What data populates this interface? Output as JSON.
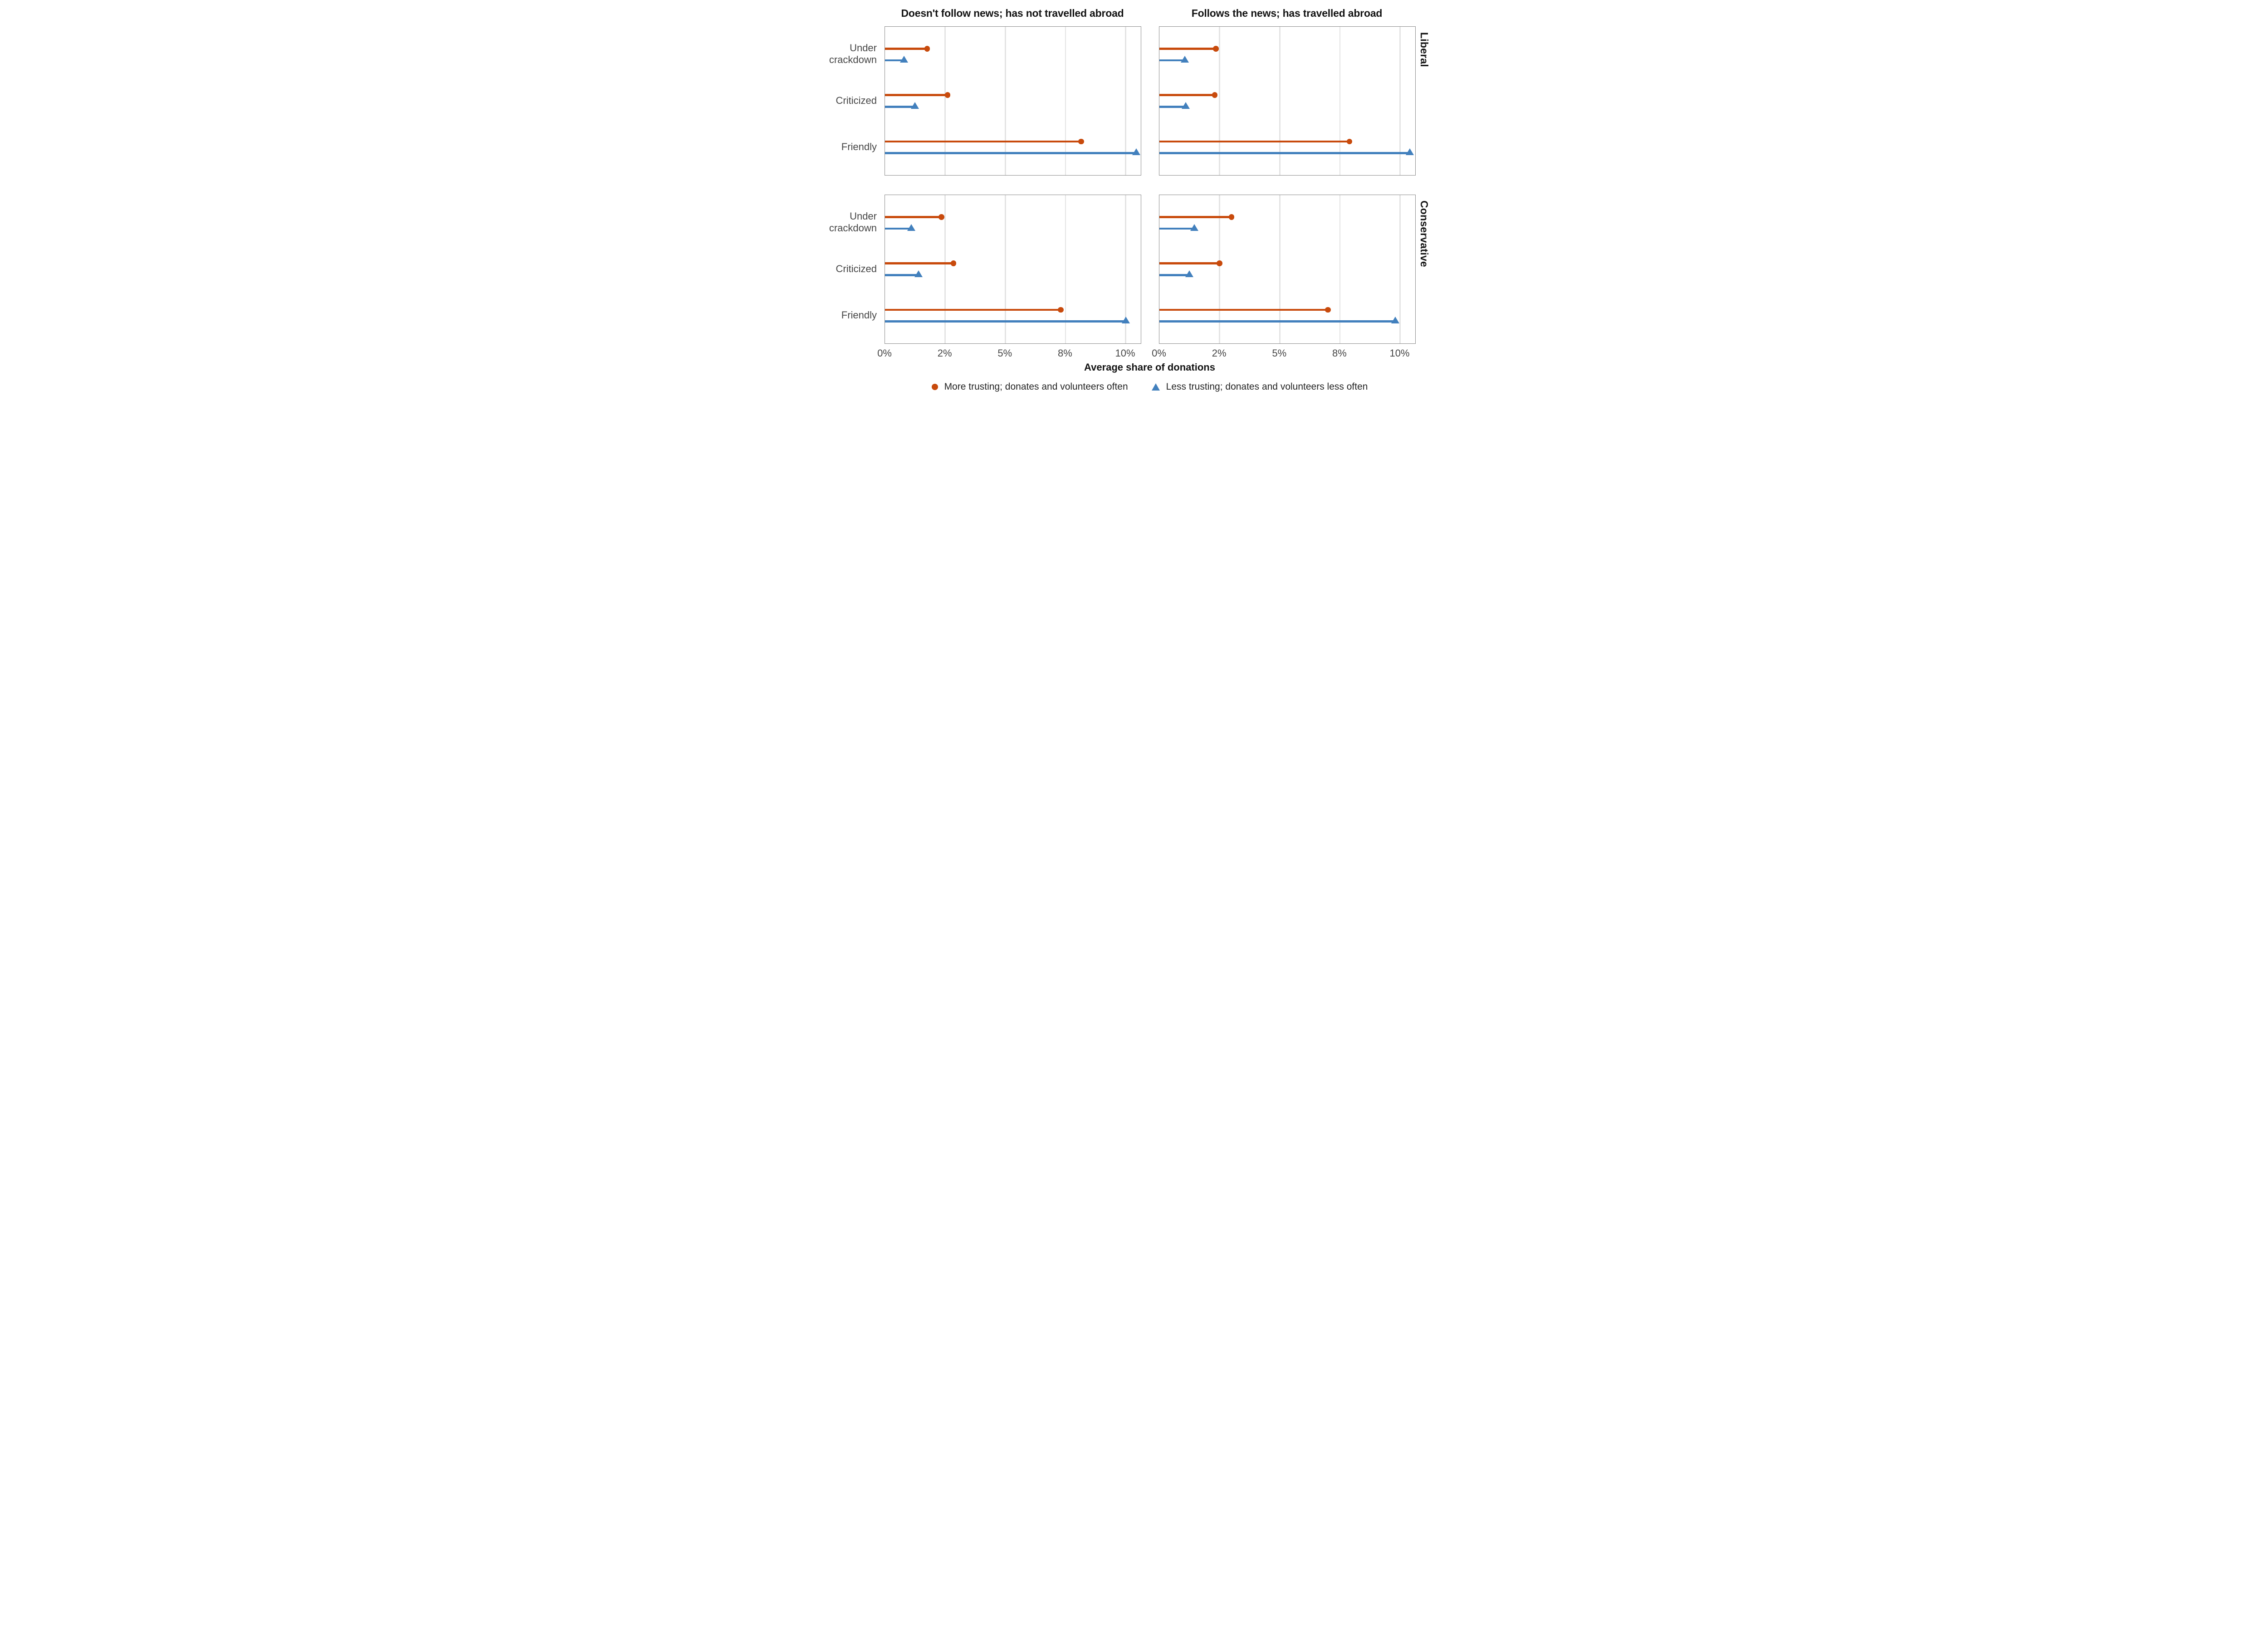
{
  "chart_data": {
    "type": "bar",
    "variant": "faceted-horizontal-lollipop",
    "xlabel": "Average share of donations",
    "x_axis": {
      "ticks": [
        0,
        2.5,
        5,
        7.5,
        10
      ],
      "tick_labels": [
        "0%",
        "2%",
        "5%",
        "8%",
        "10%"
      ],
      "range": [
        0,
        10.63
      ],
      "grid": true,
      "unit": "percent"
    },
    "categories": [
      "Under crackdown",
      "Criticized",
      "Friendly"
    ],
    "facet_cols": [
      "Doesn't follow news; has not travelled abroad",
      "Follows the news; has travelled abroad"
    ],
    "facet_rows": [
      "Liberal",
      "Conservative"
    ],
    "series": [
      {
        "name": "More trusting; donates and volunteers often",
        "marker": "circle",
        "color": "#c84a0c"
      },
      {
        "name": "Less trusting; donates and volunteers less often",
        "marker": "triangle",
        "color": "#4280bd"
      }
    ],
    "legend_position": "bottom",
    "panels": [
      {
        "facet_row": "Liberal",
        "facet_col": "Doesn't follow news; has not travelled abroad",
        "values": {
          "more_trusting": [
            1.75,
            2.6,
            8.15
          ],
          "less_trusting": [
            0.8,
            1.25,
            10.45
          ]
        }
      },
      {
        "facet_row": "Liberal",
        "facet_col": "Follows the news; has travelled abroad",
        "values": {
          "more_trusting": [
            2.35,
            2.3,
            7.9
          ],
          "less_trusting": [
            1.05,
            1.1,
            10.4
          ]
        }
      },
      {
        "facet_row": "Conservative",
        "facet_col": "Doesn't follow news; has not travelled abroad",
        "values": {
          "more_trusting": [
            2.35,
            2.85,
            7.3
          ],
          "less_trusting": [
            1.1,
            1.4,
            10.0
          ]
        }
      },
      {
        "facet_row": "Conservative",
        "facet_col": "Follows the news; has travelled abroad",
        "values": {
          "more_trusting": [
            3.0,
            2.5,
            7.0
          ],
          "less_trusting": [
            1.45,
            1.25,
            9.8
          ]
        }
      }
    ]
  }
}
